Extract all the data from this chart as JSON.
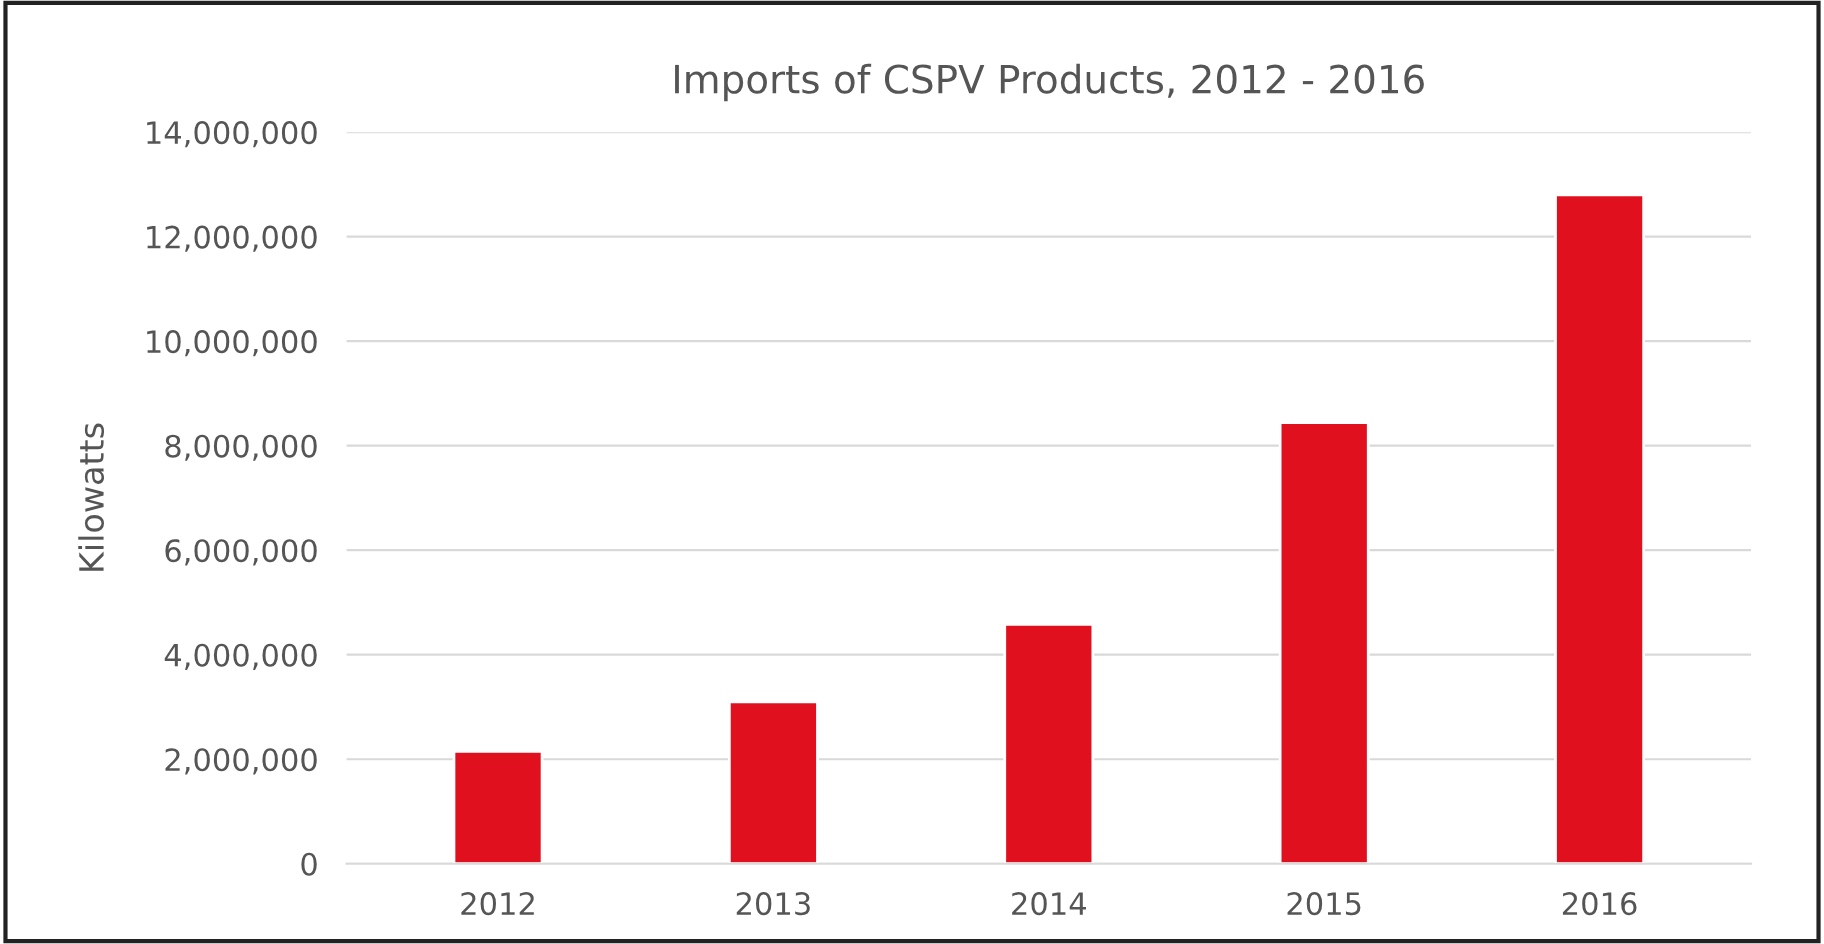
{
  "chart_data": {
    "type": "bar",
    "title": "Imports of CSPV Products, 2012 - 2016",
    "ylabel": "Kilowatts",
    "categories": [
      "2012",
      "2013",
      "2014",
      "2015",
      "2016"
    ],
    "values": [
      2150000,
      3100000,
      4580000,
      8440000,
      12800000
    ],
    "color": "#e0101f",
    "ylim": [
      0,
      14000000
    ],
    "yticks": [
      0,
      {
        "value": 2000000,
        "label": "2,000,000"
      },
      {
        "value": 4000000,
        "label": "4,000,000"
      },
      {
        "value": 6000000,
        "label": "6,000,000"
      },
      {
        "value": 8000000,
        "label": "8,000,000"
      },
      {
        "value": 10000000,
        "label": "10,000,000"
      },
      {
        "value": 12000000,
        "label": "12,000,000"
      },
      {
        "value": 14000000,
        "label": "14,000,000"
      }
    ],
    "grid": "y",
    "legend": false
  }
}
